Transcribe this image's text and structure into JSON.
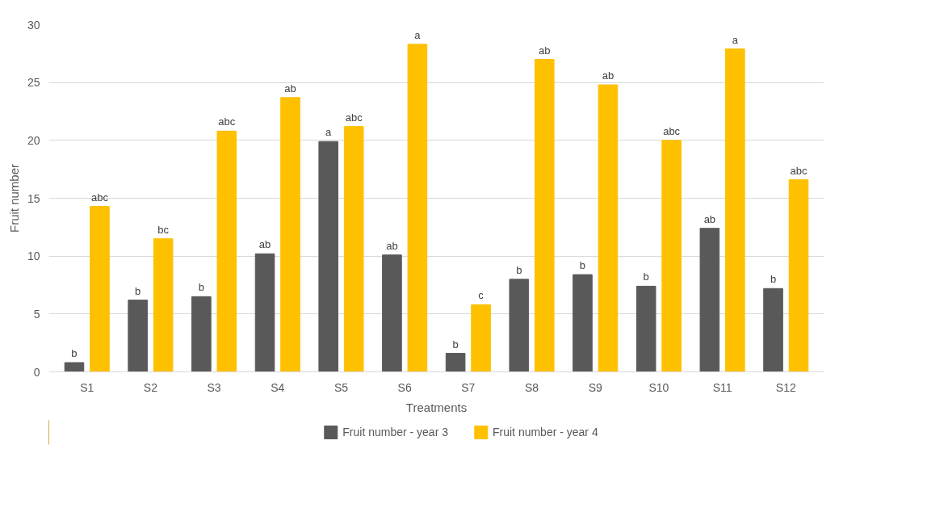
{
  "chart_data": {
    "type": "bar",
    "xlabel": "Treatments",
    "ylabel": "Fruit number",
    "categories": [
      "S1",
      "S2",
      "S3",
      "S4",
      "S5",
      "S6",
      "S7",
      "S8",
      "S9",
      "S10",
      "S11",
      "S12"
    ],
    "series": [
      {
        "name": "Fruit number - year 3",
        "color": "#595959",
        "values": [
          0.8,
          6.2,
          6.5,
          10.2,
          19.9,
          10.1,
          1.6,
          8.0,
          8.4,
          7.4,
          12.4,
          7.2
        ],
        "value_labels": [
          "b",
          "b",
          "b",
          "ab",
          "a",
          "ab",
          "b",
          "b",
          "b",
          "b",
          "ab",
          "b"
        ]
      },
      {
        "name": "Fruit number - year 4",
        "color": "#ffc000",
        "values": [
          14.3,
          11.5,
          20.8,
          23.7,
          21.2,
          28.3,
          5.8,
          27.0,
          24.8,
          20.0,
          27.9,
          16.6
        ],
        "value_labels": [
          "abc",
          "bc",
          "abc",
          "ab",
          "abc",
          "a",
          "c",
          "ab",
          "ab",
          "abc",
          "a",
          "abc"
        ]
      }
    ],
    "ylim": [
      0,
      30
    ],
    "yticks": [
      0,
      5,
      10,
      15,
      20,
      25,
      30
    ],
    "grid": "y",
    "legend": "bottom"
  }
}
